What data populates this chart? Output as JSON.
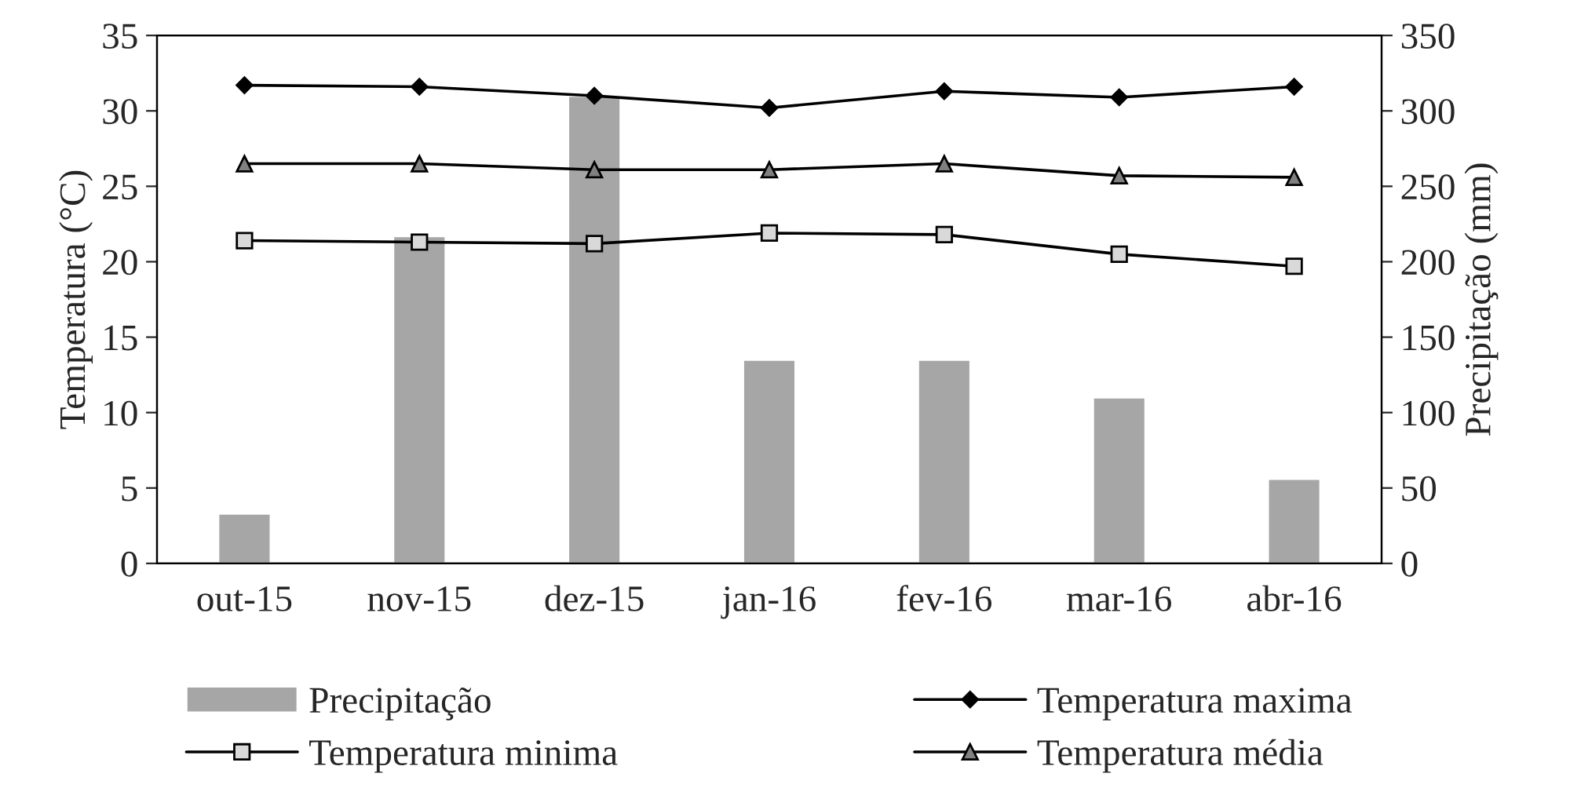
{
  "chart_data": {
    "type": "bar",
    "categories": [
      "out-15",
      "nov-15",
      "dez-15",
      "jan-16",
      "fev-16",
      "mar-16",
      "abr-16"
    ],
    "ylabel": "Temperatura (°C)",
    "y2label": "Precipitação (mm)",
    "ylim": [
      0,
      35
    ],
    "yticks": [
      0,
      5,
      10,
      15,
      20,
      25,
      30,
      35
    ],
    "y2lim": [
      0,
      350
    ],
    "y2ticks": [
      0,
      50,
      100,
      150,
      200,
      250,
      300,
      350
    ],
    "grid": false,
    "legend": "bottom",
    "series": [
      {
        "name": "Precipitação",
        "axis": "y2",
        "color": "#a6a6a6",
        "values": [
          33,
          217,
          310,
          135,
          135,
          110,
          56
        ]
      },
      {
        "name": "Temperatura maxima",
        "type": "line",
        "marker": "diamond",
        "color": "#000000",
        "values": [
          31.7,
          31.6,
          31.0,
          30.2,
          31.3,
          30.9,
          31.6
        ]
      },
      {
        "name": "Temperatura minima",
        "type": "line",
        "marker": "square",
        "color": "#000000",
        "values": [
          21.4,
          21.3,
          21.2,
          21.9,
          21.8,
          20.5,
          19.7
        ]
      },
      {
        "name": "Temperatura média",
        "type": "line",
        "marker": "triangle",
        "color": "#000000",
        "values": [
          26.5,
          26.5,
          26.1,
          26.1,
          26.5,
          25.7,
          25.6
        ]
      }
    ]
  }
}
